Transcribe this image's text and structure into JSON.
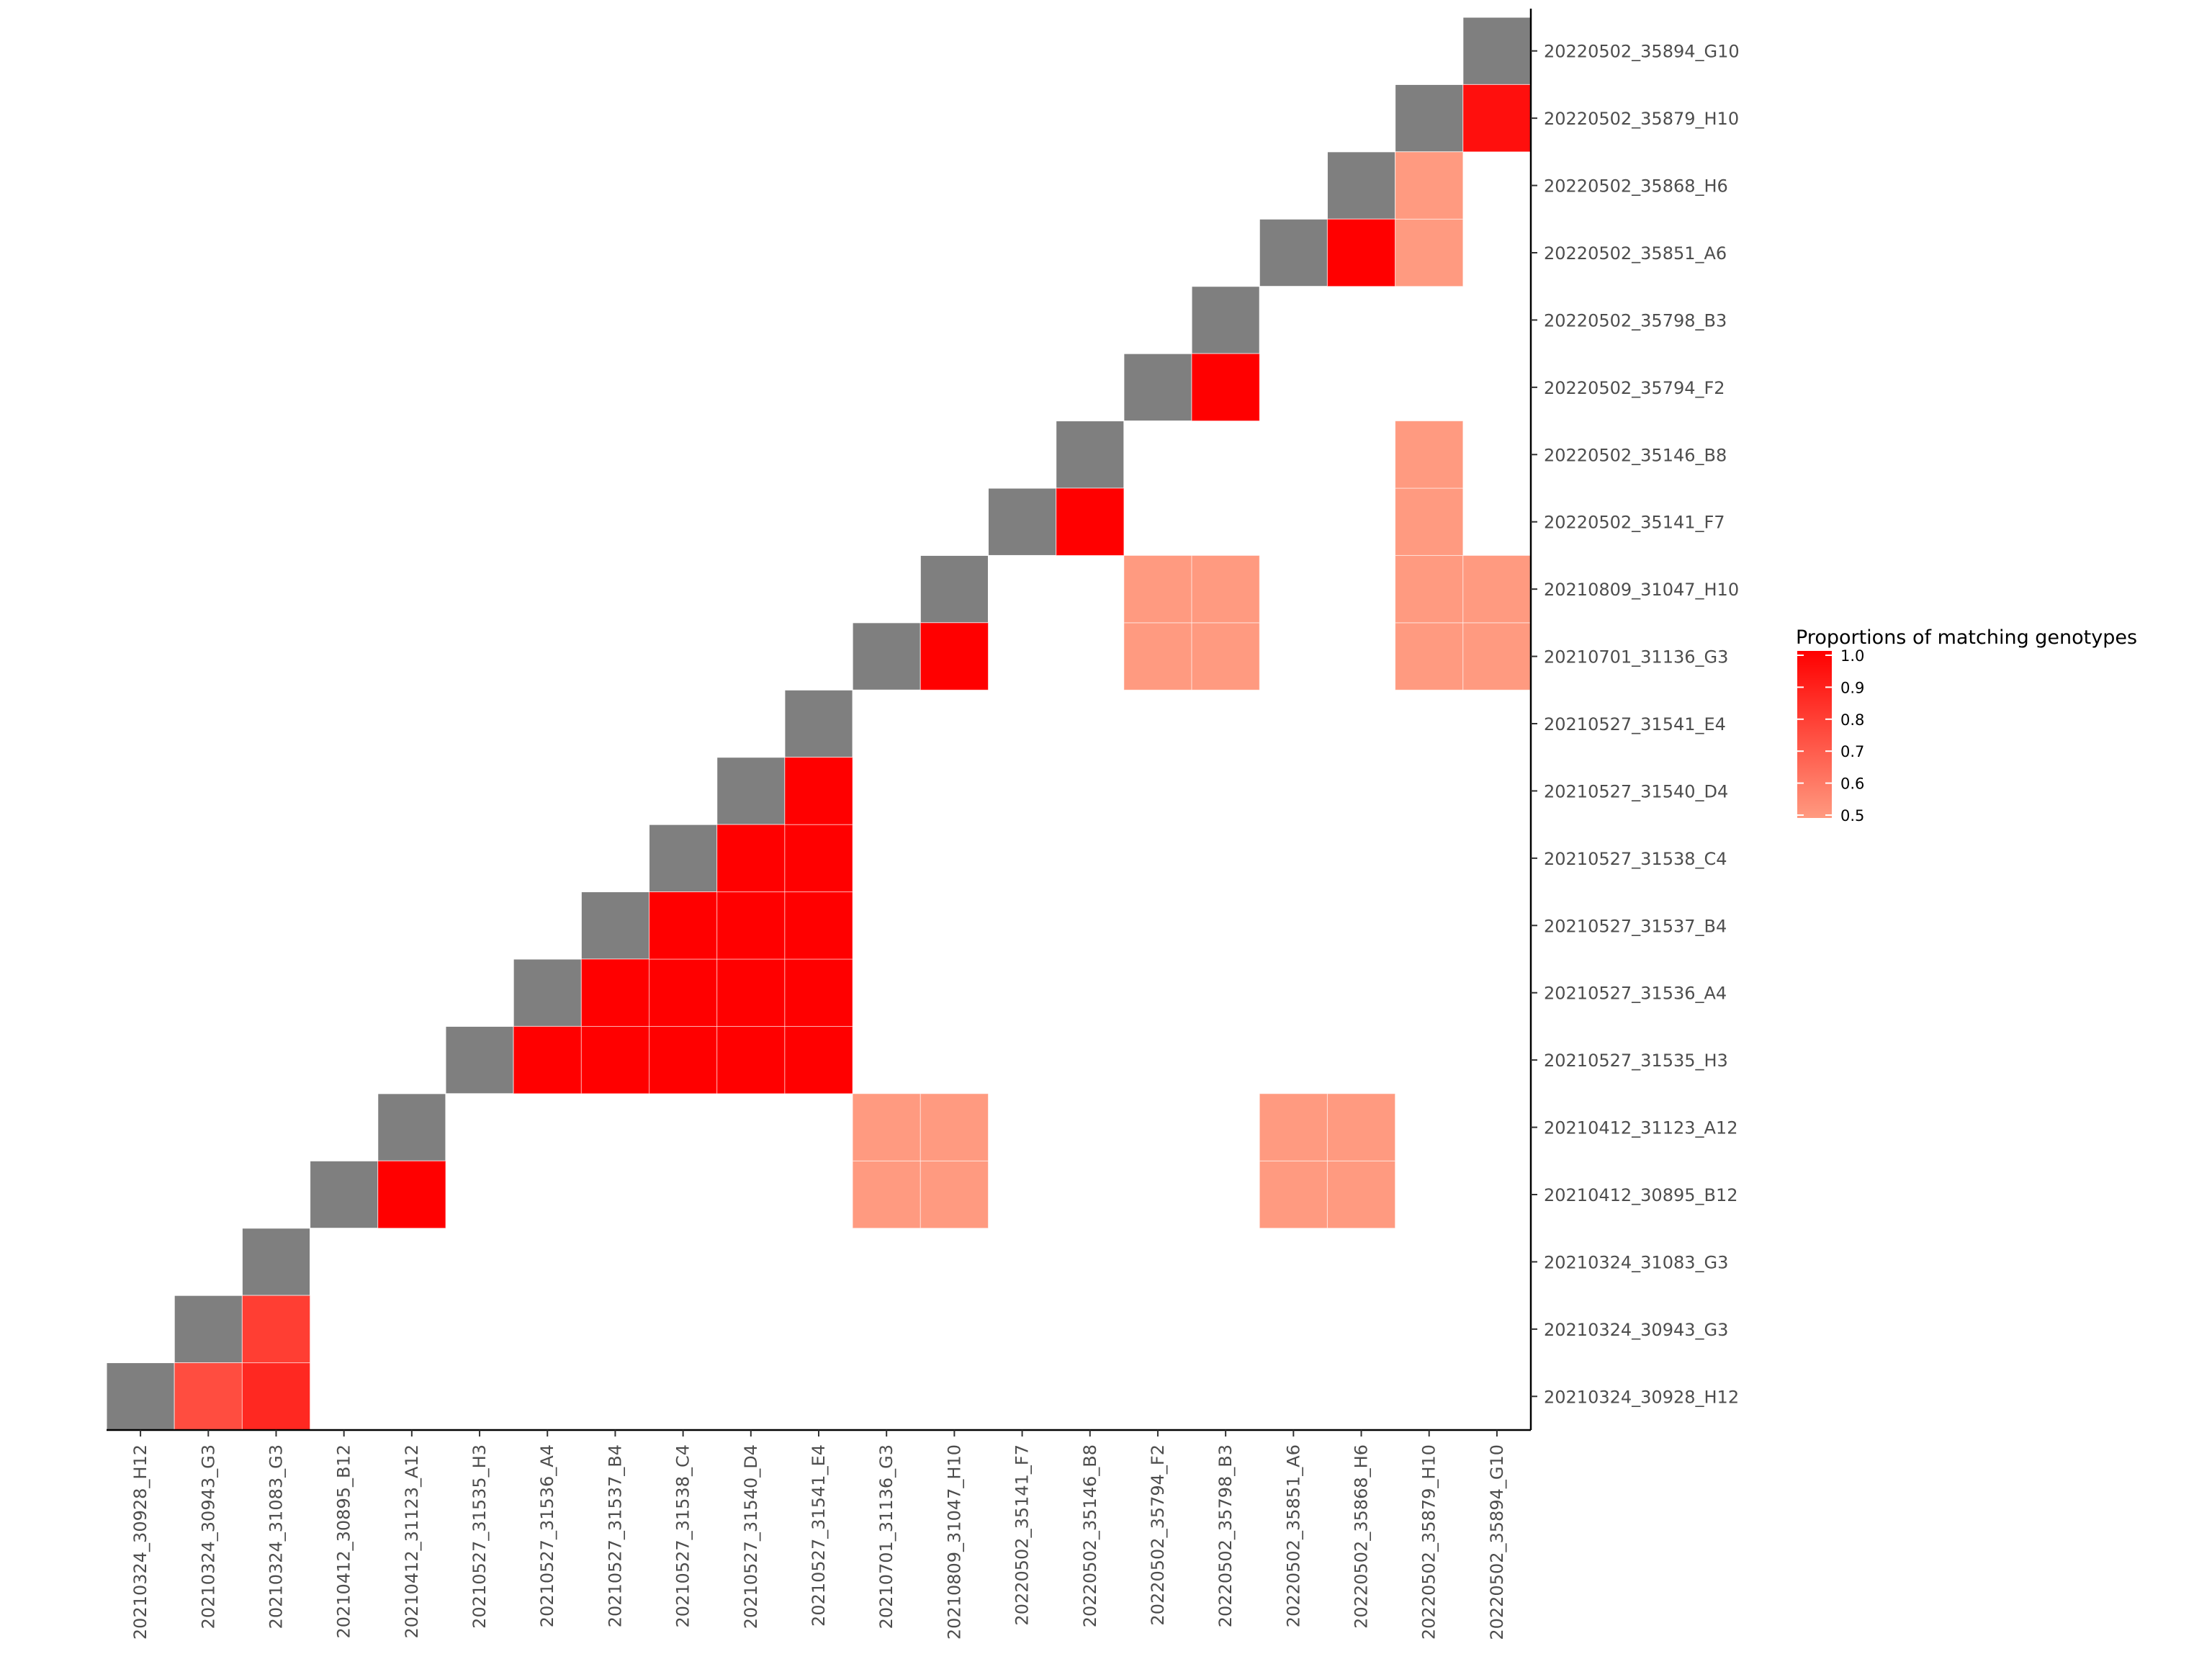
{
  "chart_data": {
    "type": "heatmap",
    "title": "",
    "xlabel": "",
    "ylabel": "",
    "samples": [
      "20210324_30928_H12",
      "20210324_30943_G3",
      "20210324_31083_G3",
      "20210412_30895_B12",
      "20210412_31123_A12",
      "20210527_31535_H3",
      "20210527_31536_A4",
      "20210527_31537_B4",
      "20210527_31538_C4",
      "20210527_31540_D4",
      "20210527_31541_E4",
      "20210701_31136_G3",
      "20210809_31047_H10",
      "20220502_35141_F7",
      "20220502_35146_B8",
      "20220502_35794_F2",
      "20220502_35798_B3",
      "20220502_35851_A6",
      "20220502_35868_H6",
      "20220502_35879_H10",
      "20220502_35894_G10"
    ],
    "diagonal_color": "#7f7f7f",
    "cells": [
      {
        "x": "20210324_30943_G3",
        "y": "20210324_30928_H12",
        "value": 0.75
      },
      {
        "x": "20210324_31083_G3",
        "y": "20210324_30928_H12",
        "value": 0.87
      },
      {
        "x": "20210324_31083_G3",
        "y": "20210324_30943_G3",
        "value": 0.8
      },
      {
        "x": "20210412_31123_A12",
        "y": "20210412_30895_B12",
        "value": 1.0
      },
      {
        "x": "20210527_31536_A4",
        "y": "20210527_31535_H3",
        "value": 1.0
      },
      {
        "x": "20210527_31537_B4",
        "y": "20210527_31535_H3",
        "value": 1.0
      },
      {
        "x": "20210527_31538_C4",
        "y": "20210527_31535_H3",
        "value": 1.0
      },
      {
        "x": "20210527_31540_D4",
        "y": "20210527_31535_H3",
        "value": 1.0
      },
      {
        "x": "20210527_31541_E4",
        "y": "20210527_31535_H3",
        "value": 1.0
      },
      {
        "x": "20210527_31537_B4",
        "y": "20210527_31536_A4",
        "value": 1.0
      },
      {
        "x": "20210527_31538_C4",
        "y": "20210527_31536_A4",
        "value": 1.0
      },
      {
        "x": "20210527_31540_D4",
        "y": "20210527_31536_A4",
        "value": 1.0
      },
      {
        "x": "20210527_31541_E4",
        "y": "20210527_31536_A4",
        "value": 1.0
      },
      {
        "x": "20210527_31538_C4",
        "y": "20210527_31537_B4",
        "value": 1.0
      },
      {
        "x": "20210527_31540_D4",
        "y": "20210527_31537_B4",
        "value": 1.0
      },
      {
        "x": "20210527_31541_E4",
        "y": "20210527_31537_B4",
        "value": 1.0
      },
      {
        "x": "20210527_31540_D4",
        "y": "20210527_31538_C4",
        "value": 1.0
      },
      {
        "x": "20210527_31541_E4",
        "y": "20210527_31538_C4",
        "value": 1.0
      },
      {
        "x": "20210527_31541_E4",
        "y": "20210527_31540_D4",
        "value": 1.0
      },
      {
        "x": "20210701_31136_G3",
        "y": "20210412_30895_B12",
        "value": 0.5
      },
      {
        "x": "20210809_31047_H10",
        "y": "20210412_30895_B12",
        "value": 0.5
      },
      {
        "x": "20220502_35851_A6",
        "y": "20210412_30895_B12",
        "value": 0.5
      },
      {
        "x": "20220502_35868_H6",
        "y": "20210412_30895_B12",
        "value": 0.5
      },
      {
        "x": "20210701_31136_G3",
        "y": "20210412_31123_A12",
        "value": 0.5
      },
      {
        "x": "20210809_31047_H10",
        "y": "20210412_31123_A12",
        "value": 0.5
      },
      {
        "x": "20220502_35851_A6",
        "y": "20210412_31123_A12",
        "value": 0.5
      },
      {
        "x": "20220502_35868_H6",
        "y": "20210412_31123_A12",
        "value": 0.5
      },
      {
        "x": "20210809_31047_H10",
        "y": "20210701_31136_G3",
        "value": 1.0
      },
      {
        "x": "20220502_35794_F2",
        "y": "20210701_31136_G3",
        "value": 0.5
      },
      {
        "x": "20220502_35798_B3",
        "y": "20210701_31136_G3",
        "value": 0.5
      },
      {
        "x": "20220502_35879_H10",
        "y": "20210701_31136_G3",
        "value": 0.5
      },
      {
        "x": "20220502_35894_G10",
        "y": "20210701_31136_G3",
        "value": 0.5
      },
      {
        "x": "20220502_35794_F2",
        "y": "20210809_31047_H10",
        "value": 0.5
      },
      {
        "x": "20220502_35798_B3",
        "y": "20210809_31047_H10",
        "value": 0.5
      },
      {
        "x": "20220502_35879_H10",
        "y": "20210809_31047_H10",
        "value": 0.5
      },
      {
        "x": "20220502_35894_G10",
        "y": "20210809_31047_H10",
        "value": 0.5
      },
      {
        "x": "20220502_35146_B8",
        "y": "20220502_35141_F7",
        "value": 1.0
      },
      {
        "x": "20220502_35879_H10",
        "y": "20220502_35141_F7",
        "value": 0.5
      },
      {
        "x": "20220502_35879_H10",
        "y": "20220502_35146_B8",
        "value": 0.5
      },
      {
        "x": "20220502_35798_B3",
        "y": "20220502_35794_F2",
        "value": 1.0
      },
      {
        "x": "20220502_35868_H6",
        "y": "20220502_35851_A6",
        "value": 1.0
      },
      {
        "x": "20220502_35879_H10",
        "y": "20220502_35851_A6",
        "value": 0.5
      },
      {
        "x": "20220502_35879_H10",
        "y": "20220502_35868_H6",
        "value": 0.5
      },
      {
        "x": "20220502_35894_G10",
        "y": "20220502_35879_H10",
        "value": 0.95
      }
    ],
    "legend": {
      "title": "Proportions of matching genotypes",
      "position": "right",
      "breaks": [
        "1.0",
        "0.9",
        "0.8",
        "0.7",
        "0.6",
        "0.5"
      ],
      "range": [
        0.5,
        1.0
      ],
      "low_color": "#ff9a80",
      "high_color": "#ff0000"
    },
    "grid": false
  }
}
